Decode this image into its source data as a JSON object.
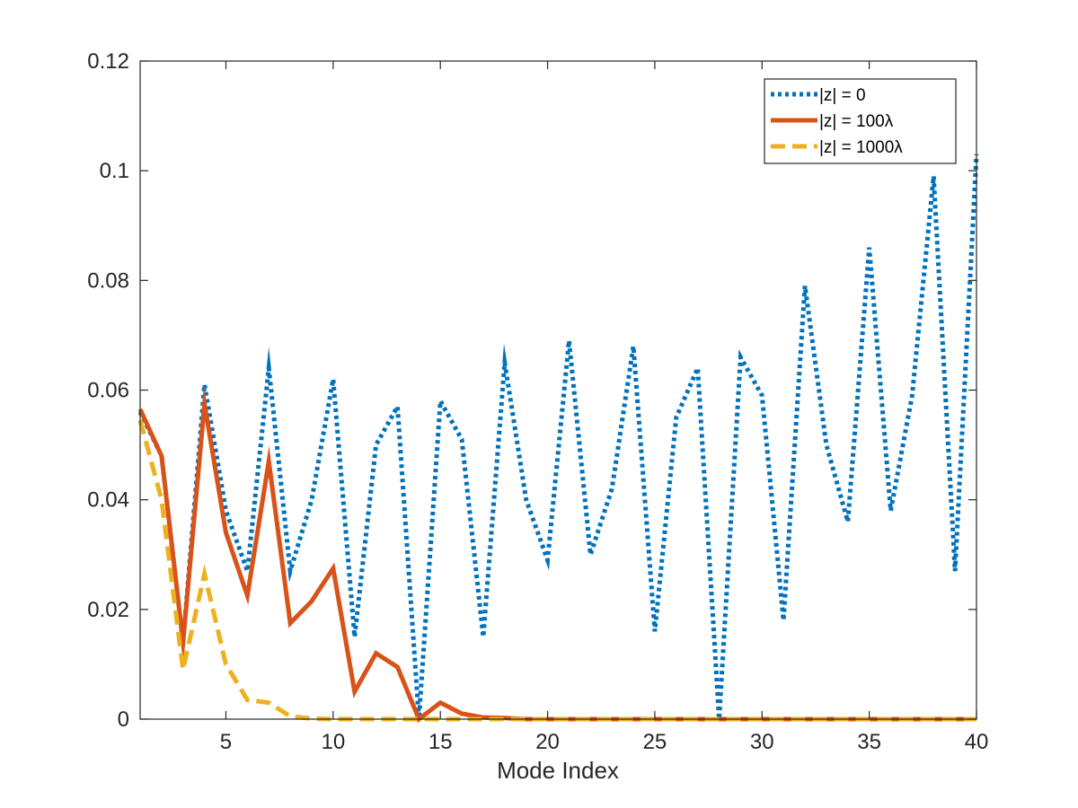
{
  "chart_data": {
    "type": "line",
    "title": "",
    "xlabel": "Mode Index",
    "ylabel": "",
    "xlim": [
      1,
      40
    ],
    "ylim": [
      0,
      0.12
    ],
    "grid": false,
    "legend_position": "top-right",
    "x_ticks": [
      5,
      10,
      15,
      20,
      25,
      30,
      35,
      40
    ],
    "x_tick_labels": [
      "5",
      "10",
      "15",
      "20",
      "25",
      "30",
      "35",
      "40"
    ],
    "y_ticks": [
      0,
      0.02,
      0.04,
      0.06,
      0.08,
      0.1,
      0.12
    ],
    "y_tick_labels": [
      "0",
      "0.02",
      "0.04",
      "0.06",
      "0.08",
      "0.1",
      "0.12"
    ],
    "x": [
      1,
      2,
      3,
      4,
      5,
      6,
      7,
      8,
      9,
      10,
      11,
      12,
      13,
      14,
      15,
      16,
      17,
      18,
      19,
      20,
      21,
      22,
      23,
      24,
      25,
      26,
      27,
      28,
      29,
      30,
      31,
      32,
      33,
      34,
      35,
      36,
      37,
      38,
      39,
      40
    ],
    "series": [
      {
        "name": "|z| = 0",
        "color": "#0072BD",
        "style": "dotted",
        "values": [
          0.056,
          0.048,
          0.014,
          0.061,
          0.038,
          0.027,
          0.064,
          0.027,
          0.04,
          0.062,
          0.015,
          0.05,
          0.057,
          0.0,
          0.058,
          0.051,
          0.015,
          0.065,
          0.04,
          0.029,
          0.069,
          0.03,
          0.042,
          0.068,
          0.016,
          0.055,
          0.064,
          0.0,
          0.066,
          0.059,
          0.018,
          0.079,
          0.05,
          0.036,
          0.086,
          0.038,
          0.059,
          0.099,
          0.027,
          0.103
        ]
      },
      {
        "name": "|z| = 100λ",
        "color": "#D95319",
        "style": "solid",
        "values": [
          0.0565,
          0.048,
          0.014,
          0.0575,
          0.034,
          0.0225,
          0.047,
          0.0175,
          0.0215,
          0.0275,
          0.005,
          0.012,
          0.0095,
          0.0,
          0.003,
          0.001,
          0.0003,
          0.0002,
          0,
          0,
          0,
          0,
          0,
          0,
          0,
          0,
          0,
          0,
          0,
          0,
          0,
          0,
          0,
          0,
          0,
          0,
          0,
          0,
          0,
          0
        ]
      },
      {
        "name": "|z| = 1000λ",
        "color": "#EDB120",
        "style": "dashed",
        "values": [
          0.0545,
          0.04,
          0.009,
          0.0265,
          0.01,
          0.0035,
          0.003,
          0.0005,
          0.0001,
          0.0,
          0,
          0,
          0,
          0,
          0,
          0,
          0,
          0,
          0,
          0,
          0,
          0,
          0,
          0,
          0,
          0,
          0,
          0,
          0,
          0,
          0,
          0,
          0,
          0,
          0,
          0,
          0,
          0,
          0,
          0
        ]
      }
    ]
  }
}
